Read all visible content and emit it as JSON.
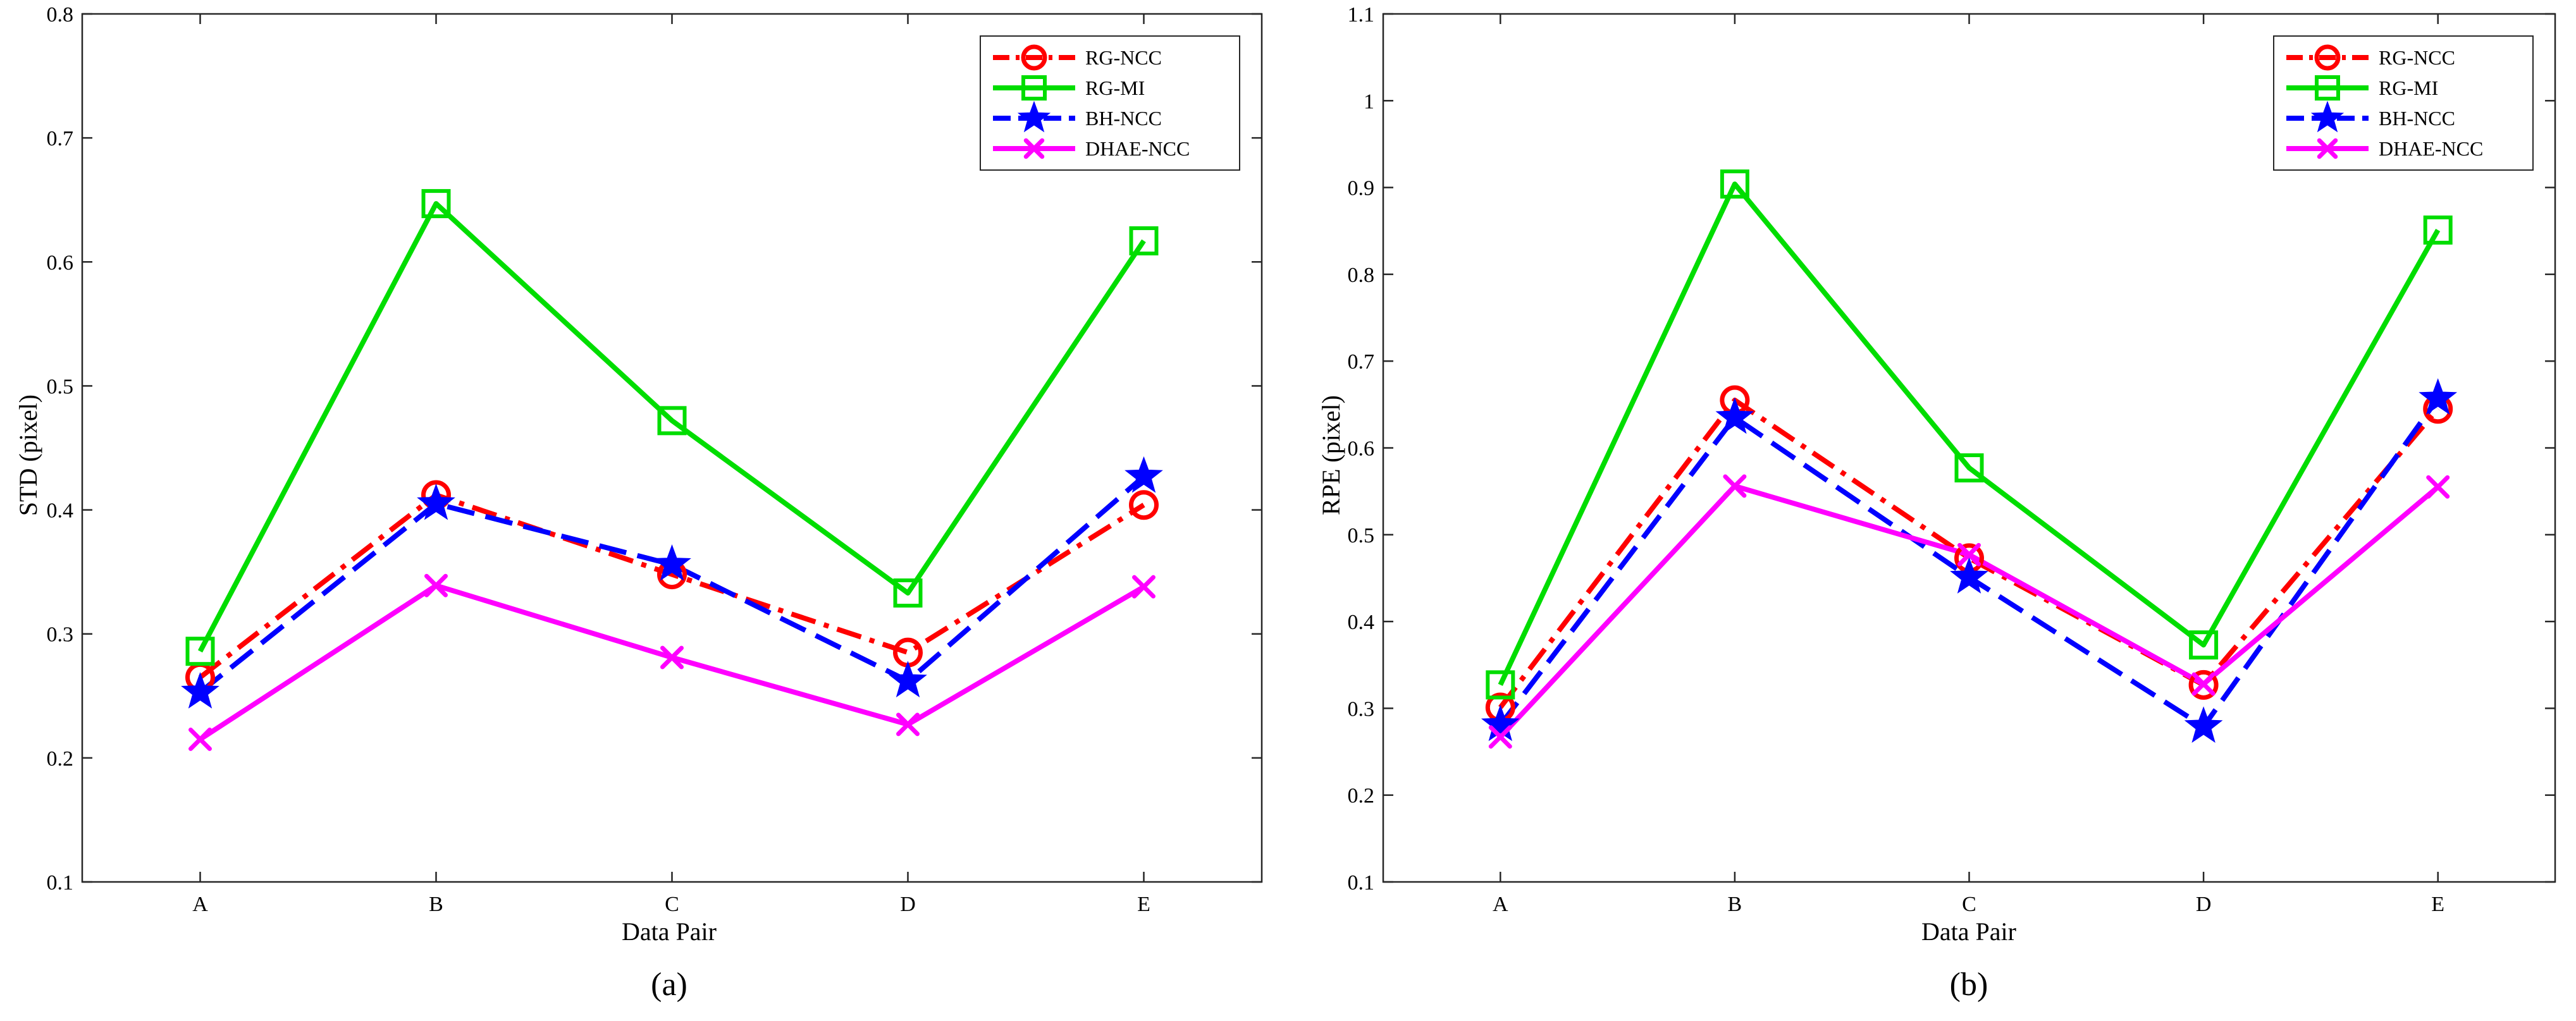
{
  "chart_data": [
    {
      "type": "line",
      "caption": "(a)",
      "xlabel": "Data Pair",
      "ylabel": "STD (pixel)",
      "categories": [
        "A",
        "B",
        "C",
        "D",
        "E"
      ],
      "ylim": [
        0.1,
        0.8
      ],
      "yticks": [
        "0.1",
        "0.2",
        "0.3",
        "0.4",
        "0.5",
        "0.6",
        "0.7",
        "0.8"
      ],
      "legend_position": "top-right",
      "series": [
        {
          "name": "RG-NCC",
          "color": "#ff0000",
          "marker": "circle",
          "line": "dashdot",
          "values": [
            0.265,
            0.412,
            0.348,
            0.285,
            0.404
          ]
        },
        {
          "name": "RG-MI",
          "color": "#00dd00",
          "marker": "square",
          "line": "solid",
          "values": [
            0.286,
            0.647,
            0.472,
            0.333,
            0.617
          ]
        },
        {
          "name": "BH-NCC",
          "color": "#0000ff",
          "marker": "star",
          "line": "dashed",
          "values": [
            0.253,
            0.405,
            0.356,
            0.262,
            0.427
          ]
        },
        {
          "name": "DHAE-NCC",
          "color": "#ff00ff",
          "marker": "x",
          "line": "solid",
          "values": [
            0.215,
            0.339,
            0.281,
            0.227,
            0.338
          ]
        }
      ]
    },
    {
      "type": "line",
      "caption": "(b)",
      "xlabel": "Data Pair",
      "ylabel": "RPE  (pixel)",
      "categories": [
        "A",
        "B",
        "C",
        "D",
        "E"
      ],
      "ylim": [
        0.1,
        1.1
      ],
      "yticks": [
        "0.1",
        "0.2",
        "0.3",
        "0.4",
        "0.5",
        "0.6",
        "0.7",
        "0.8",
        "0.9",
        "1",
        "1.1"
      ],
      "legend_position": "top-right",
      "series": [
        {
          "name": "RG-NCC",
          "color": "#ff0000",
          "marker": "circle",
          "line": "dashdot",
          "values": [
            0.301,
            0.655,
            0.473,
            0.327,
            0.645
          ]
        },
        {
          "name": "RG-MI",
          "color": "#00dd00",
          "marker": "square",
          "line": "solid",
          "values": [
            0.327,
            0.904,
            0.577,
            0.373,
            0.851
          ]
        },
        {
          "name": "BH-NCC",
          "color": "#0000ff",
          "marker": "star",
          "line": "dashed",
          "values": [
            0.281,
            0.635,
            0.451,
            0.279,
            0.657
          ]
        },
        {
          "name": "DHAE-NCC",
          "color": "#ff00ff",
          "marker": "x",
          "line": "solid",
          "values": [
            0.267,
            0.556,
            0.477,
            0.328,
            0.555
          ]
        }
      ]
    }
  ]
}
